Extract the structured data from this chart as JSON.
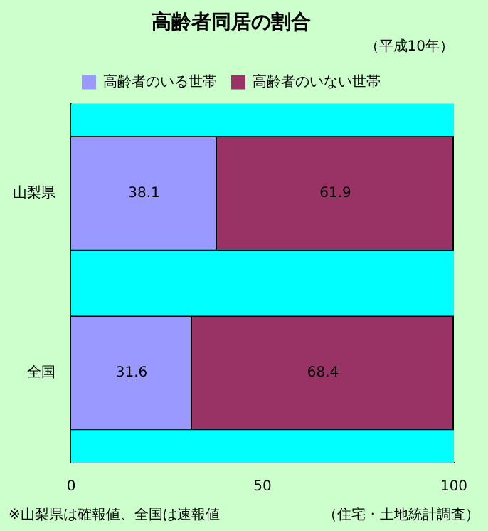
{
  "chart_data": {
    "type": "bar",
    "orientation": "horizontal",
    "stacked": true,
    "title": "高齢者同居の割合",
    "subtitle": "（平成10年）",
    "categories": [
      "山梨県",
      "全国"
    ],
    "series": [
      {
        "name": "高齢者のいる世帯",
        "color": "#9999ff",
        "values": [
          38.1,
          31.6
        ]
      },
      {
        "name": "高齢者のいない世帯",
        "color": "#993366",
        "values": [
          61.9,
          68.4
        ]
      }
    ],
    "bands": [
      {
        "axis": "x",
        "from": 0,
        "to": 100,
        "color": "#00ffff"
      }
    ],
    "xlim": [
      0,
      100
    ],
    "xticks": [
      0,
      50,
      100
    ],
    "data_labels": true,
    "legend": "top",
    "grid": false,
    "annotations": [
      "※山梨県は確報値、全国は速報値",
      "（住宅・土地統計調査）"
    ]
  }
}
